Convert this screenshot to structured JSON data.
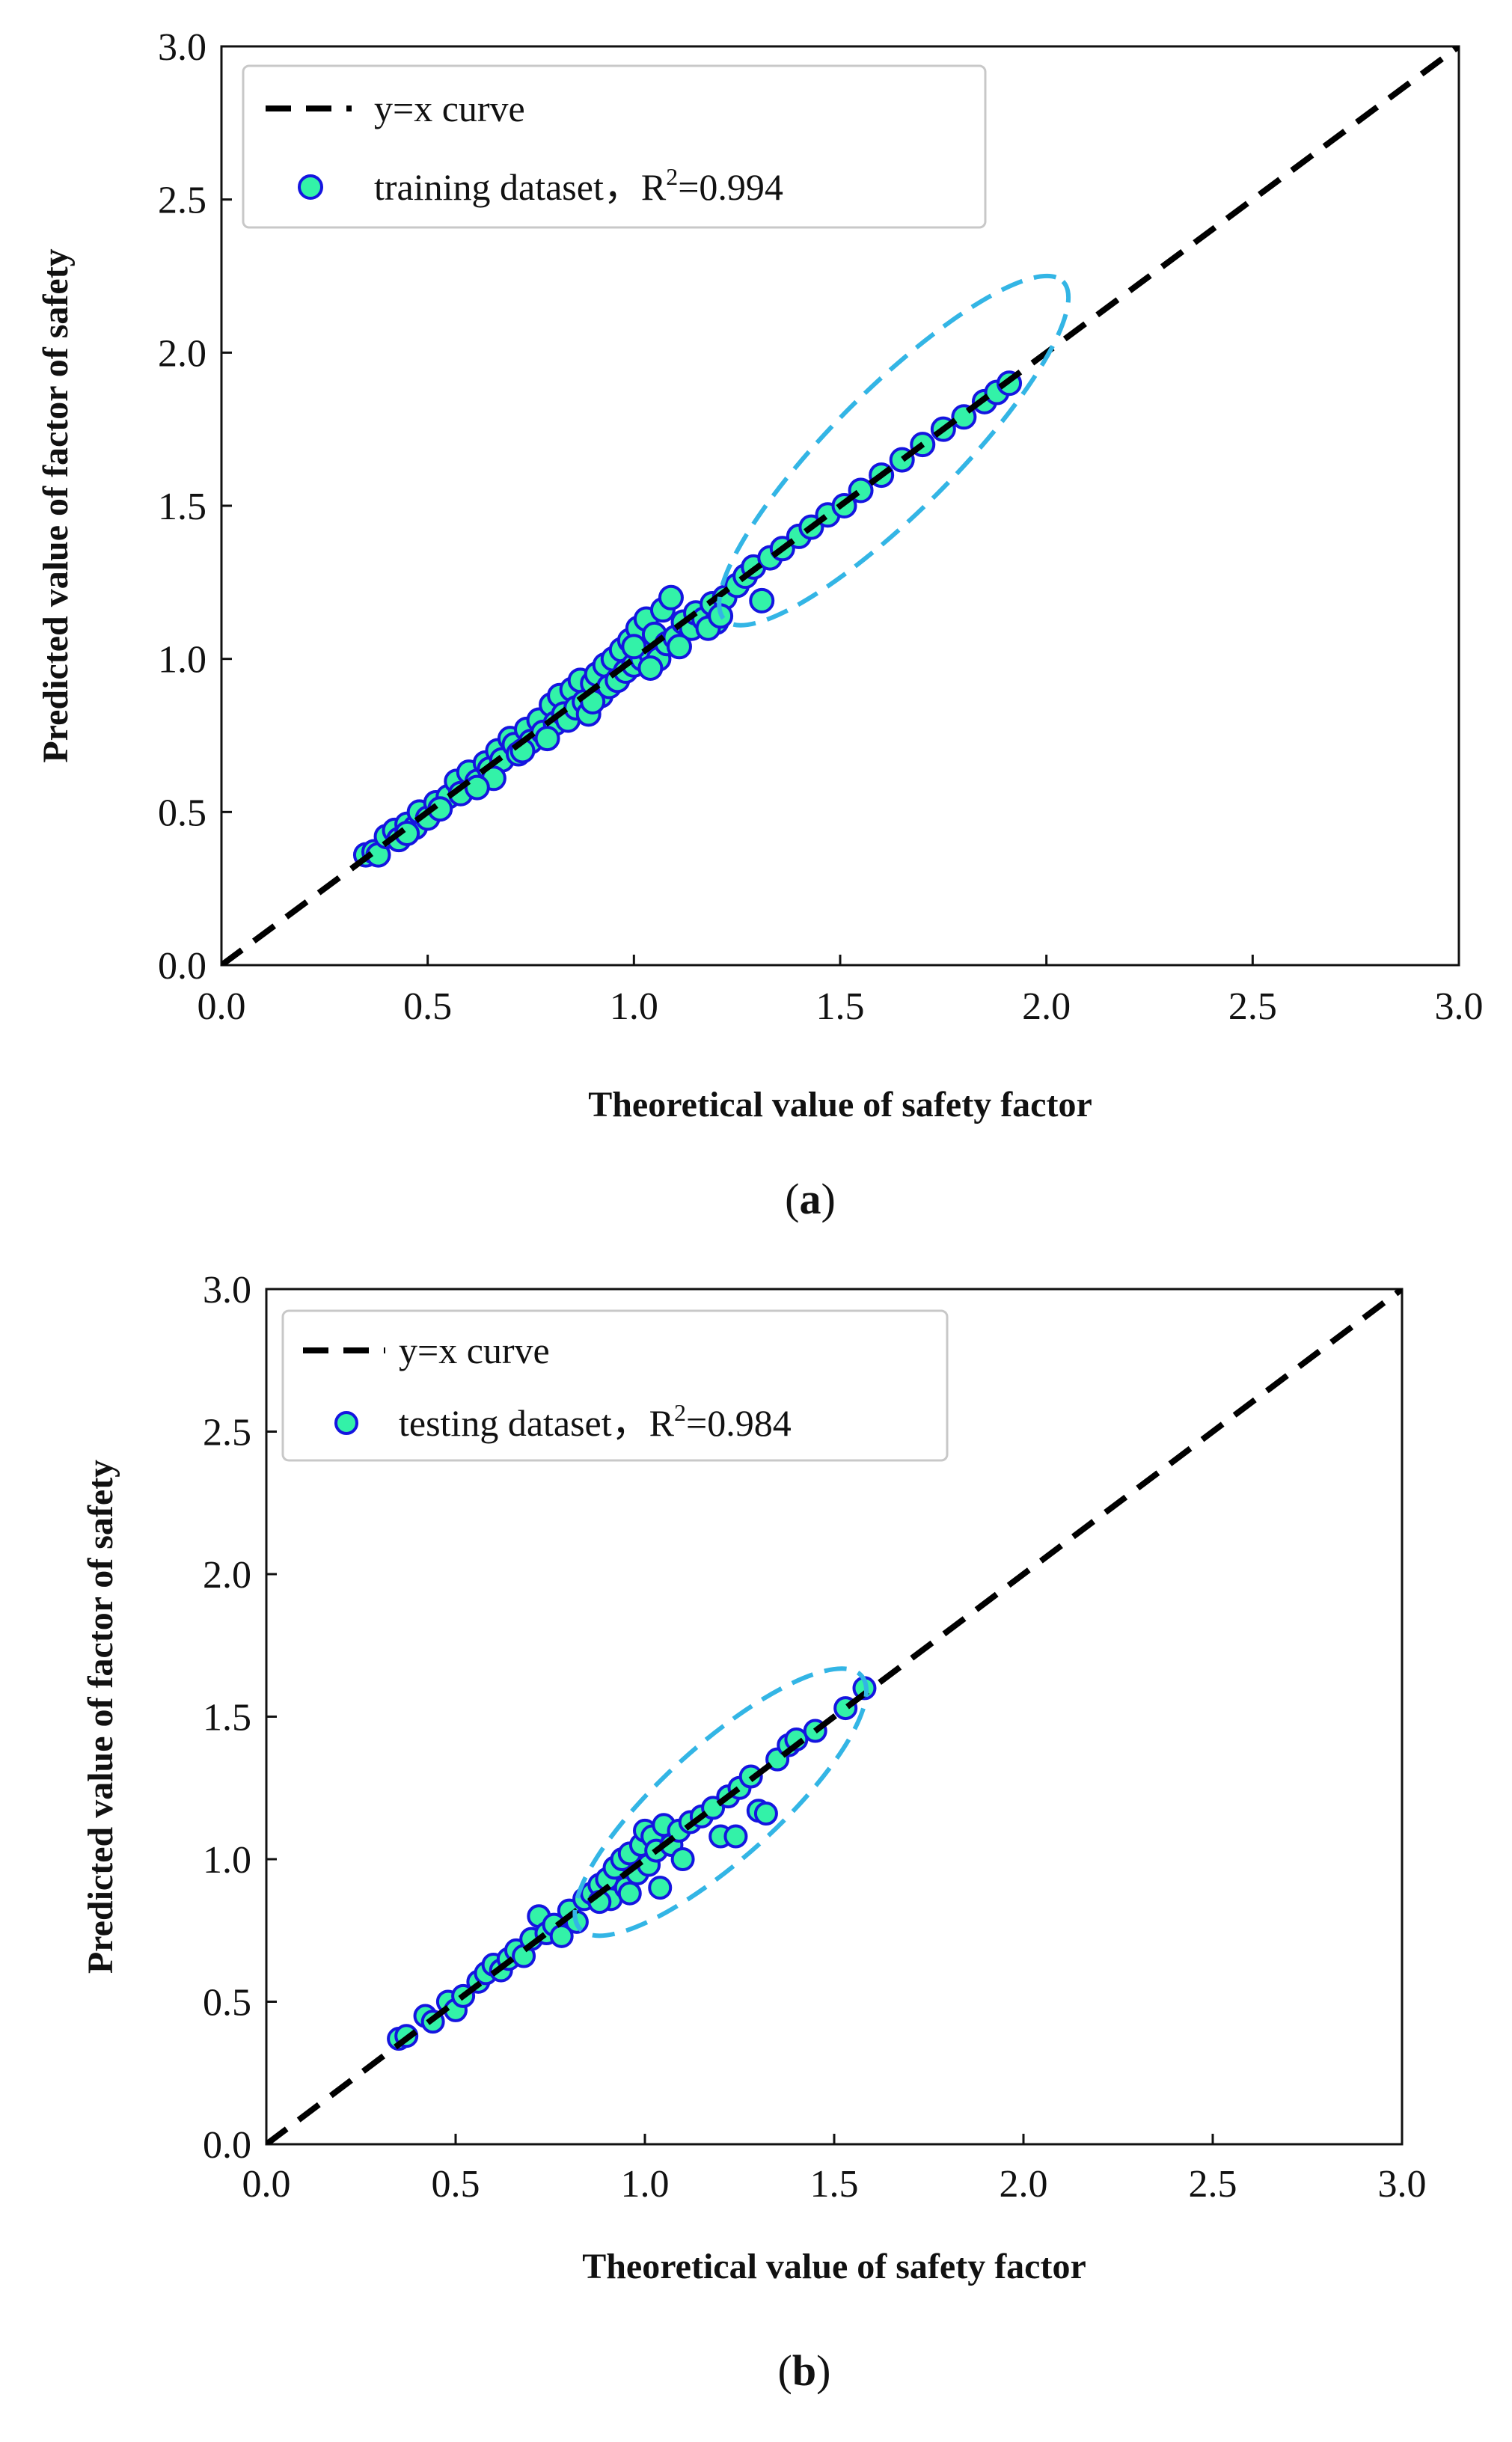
{
  "colors": {
    "marker_fill": "#33F2A8",
    "marker_edge": "#1515E0",
    "line": "#000000",
    "ellipse": "#33B5E5",
    "legend_border": "#c8c8c8"
  },
  "chart_data": [
    {
      "type": "scatter",
      "panel_label": "(a)",
      "panel_letter": "a",
      "xlabel": "Theoretical value of safety factor",
      "ylabel": "Predicted value of factor of safety",
      "xlim": [
        0,
        3
      ],
      "ylim": [
        0,
        3
      ],
      "xticks": [
        "0.0",
        "0.5",
        "1.0",
        "1.5",
        "2.0",
        "2.5",
        "3.0"
      ],
      "yticks": [
        "0.0",
        "0.5",
        "1.0",
        "1.5",
        "2.0",
        "2.5",
        "3.0"
      ],
      "legend": {
        "line_label": "y=x curve",
        "scatter_label_prefix": "training dataset，R",
        "sup": "2",
        "scatter_label_suffix": "=0.994"
      },
      "reference_line": {
        "from": [
          0,
          0
        ],
        "to": [
          3,
          3
        ]
      },
      "ellipse": {
        "cx": 1.63,
        "cy": 1.68,
        "rx": 0.58,
        "ry": 0.2,
        "angle_deg": -45
      },
      "points": [
        [
          0.35,
          0.36
        ],
        [
          0.37,
          0.37
        ],
        [
          0.38,
          0.36
        ],
        [
          0.4,
          0.42
        ],
        [
          0.42,
          0.44
        ],
        [
          0.43,
          0.41
        ],
        [
          0.45,
          0.46
        ],
        [
          0.47,
          0.45
        ],
        [
          0.48,
          0.5
        ],
        [
          0.5,
          0.48
        ],
        [
          0.52,
          0.53
        ],
        [
          0.55,
          0.55
        ],
        [
          0.57,
          0.6
        ],
        [
          0.58,
          0.56
        ],
        [
          0.6,
          0.63
        ],
        [
          0.62,
          0.6
        ],
        [
          0.64,
          0.66
        ],
        [
          0.65,
          0.64
        ],
        [
          0.67,
          0.7
        ],
        [
          0.68,
          0.67
        ],
        [
          0.7,
          0.74
        ],
        [
          0.71,
          0.72
        ],
        [
          0.72,
          0.69
        ],
        [
          0.74,
          0.77
        ],
        [
          0.75,
          0.73
        ],
        [
          0.77,
          0.8
        ],
        [
          0.78,
          0.76
        ],
        [
          0.8,
          0.85
        ],
        [
          0.81,
          0.79
        ],
        [
          0.82,
          0.88
        ],
        [
          0.83,
          0.82
        ],
        [
          0.84,
          0.8
        ],
        [
          0.85,
          0.9
        ],
        [
          0.86,
          0.84
        ],
        [
          0.87,
          0.93
        ],
        [
          0.88,
          0.86
        ],
        [
          0.89,
          0.82
        ],
        [
          0.9,
          0.92
        ],
        [
          0.91,
          0.95
        ],
        [
          0.92,
          0.88
        ],
        [
          0.93,
          0.98
        ],
        [
          0.94,
          0.91
        ],
        [
          0.95,
          1.0
        ],
        [
          0.96,
          0.93
        ],
        [
          0.97,
          1.03
        ],
        [
          0.98,
          0.96
        ],
        [
          0.99,
          1.06
        ],
        [
          1.0,
          0.98
        ],
        [
          1.01,
          1.1
        ],
        [
          1.02,
          1.0
        ],
        [
          1.03,
          1.13
        ],
        [
          1.04,
          1.02
        ],
        [
          1.05,
          1.08
        ],
        [
          1.06,
          1.0
        ],
        [
          1.07,
          1.16
        ],
        [
          1.08,
          1.05
        ],
        [
          1.09,
          1.2
        ],
        [
          1.1,
          1.07
        ],
        [
          1.12,
          1.12
        ],
        [
          1.14,
          1.1
        ],
        [
          1.15,
          1.15
        ],
        [
          1.17,
          1.13
        ],
        [
          1.19,
          1.18
        ],
        [
          1.2,
          1.12
        ],
        [
          1.22,
          1.2
        ],
        [
          1.25,
          1.24
        ],
        [
          1.27,
          1.27
        ],
        [
          1.29,
          1.3
        ],
        [
          1.31,
          1.19
        ],
        [
          1.33,
          1.33
        ],
        [
          1.36,
          1.36
        ],
        [
          1.4,
          1.4
        ],
        [
          1.43,
          1.43
        ],
        [
          1.47,
          1.47
        ],
        [
          1.51,
          1.5
        ],
        [
          1.55,
          1.55
        ],
        [
          1.6,
          1.6
        ],
        [
          1.65,
          1.65
        ],
        [
          1.7,
          1.7
        ],
        [
          1.75,
          1.75
        ],
        [
          1.8,
          1.79
        ],
        [
          1.85,
          1.84
        ],
        [
          1.88,
          1.87
        ],
        [
          1.91,
          1.9
        ],
        [
          0.66,
          0.61
        ],
        [
          0.73,
          0.7
        ],
        [
          0.79,
          0.74
        ],
        [
          0.9,
          0.86
        ],
        [
          1.0,
          1.04
        ],
        [
          1.04,
          0.97
        ],
        [
          1.11,
          1.04
        ],
        [
          0.62,
          0.58
        ],
        [
          0.53,
          0.51
        ],
        [
          0.45,
          0.43
        ],
        [
          1.18,
          1.1
        ],
        [
          1.21,
          1.14
        ]
      ]
    },
    {
      "type": "scatter",
      "panel_label": "(b)",
      "panel_letter": "b",
      "xlabel": "Theoretical value of safety factor",
      "ylabel": "Predicted value of factor of safety",
      "xlim": [
        0,
        3
      ],
      "ylim": [
        0,
        3
      ],
      "xticks": [
        "0.0",
        "0.5",
        "1.0",
        "1.5",
        "2.0",
        "2.5",
        "3.0"
      ],
      "yticks": [
        "0.0",
        "0.5",
        "1.0",
        "1.5",
        "2.0",
        "2.5",
        "3.0"
      ],
      "legend": {
        "line_label": "y=x curve",
        "scatter_label_prefix": "testing dataset，R",
        "sup": "2",
        "scatter_label_suffix": "=0.984"
      },
      "reference_line": {
        "from": [
          0,
          0
        ],
        "to": [
          3,
          3
        ]
      },
      "ellipse": {
        "cx": 1.2,
        "cy": 1.2,
        "rx": 0.5,
        "ry": 0.2,
        "angle_deg": -42
      },
      "points": [
        [
          0.35,
          0.37
        ],
        [
          0.37,
          0.38
        ],
        [
          0.42,
          0.45
        ],
        [
          0.44,
          0.43
        ],
        [
          0.48,
          0.5
        ],
        [
          0.5,
          0.47
        ],
        [
          0.52,
          0.52
        ],
        [
          0.56,
          0.57
        ],
        [
          0.58,
          0.6
        ],
        [
          0.6,
          0.63
        ],
        [
          0.62,
          0.61
        ],
        [
          0.64,
          0.65
        ],
        [
          0.66,
          0.68
        ],
        [
          0.68,
          0.66
        ],
        [
          0.7,
          0.72
        ],
        [
          0.72,
          0.8
        ],
        [
          0.74,
          0.74
        ],
        [
          0.76,
          0.77
        ],
        [
          0.78,
          0.73
        ],
        [
          0.8,
          0.82
        ],
        [
          0.82,
          0.78
        ],
        [
          0.84,
          0.86
        ],
        [
          0.86,
          0.88
        ],
        [
          0.88,
          0.91
        ],
        [
          0.9,
          0.93
        ],
        [
          0.91,
          0.86
        ],
        [
          0.92,
          0.97
        ],
        [
          0.94,
          1.0
        ],
        [
          0.95,
          0.9
        ],
        [
          0.96,
          1.02
        ],
        [
          0.98,
          0.95
        ],
        [
          0.99,
          1.05
        ],
        [
          1.0,
          1.1
        ],
        [
          1.01,
          0.98
        ],
        [
          1.02,
          1.08
        ],
        [
          1.03,
          1.03
        ],
        [
          1.04,
          0.9
        ],
        [
          1.05,
          1.12
        ],
        [
          1.07,
          1.05
        ],
        [
          1.09,
          1.1
        ],
        [
          1.1,
          1.0
        ],
        [
          1.12,
          1.13
        ],
        [
          1.15,
          1.15
        ],
        [
          1.18,
          1.18
        ],
        [
          1.2,
          1.08
        ],
        [
          1.22,
          1.22
        ],
        [
          1.24,
          1.08
        ],
        [
          1.25,
          1.25
        ],
        [
          1.28,
          1.29
        ],
        [
          1.3,
          1.17
        ],
        [
          1.32,
          1.16
        ],
        [
          1.35,
          1.35
        ],
        [
          1.38,
          1.4
        ],
        [
          1.4,
          1.42
        ],
        [
          1.45,
          1.45
        ],
        [
          1.53,
          1.53
        ],
        [
          1.58,
          1.6
        ],
        [
          0.96,
          0.88
        ],
        [
          0.88,
          0.85
        ]
      ]
    }
  ]
}
